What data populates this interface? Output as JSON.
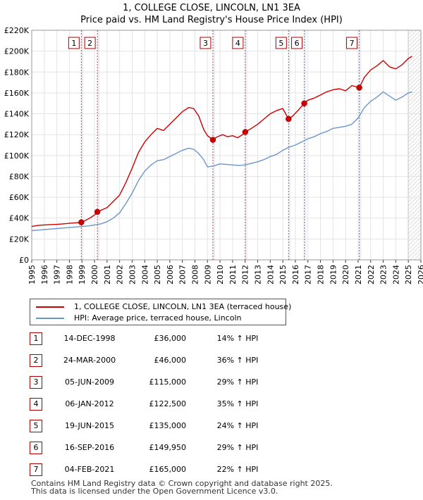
{
  "title": "1, COLLEGE CLOSE, LINCOLN, LN1 3EA",
  "subtitle": "Price paid vs. HM Land Registry's House Price Index (HPI)",
  "colors": {
    "property": "#cc0000",
    "hpi": "#6a96cc",
    "marker_line": "#cc0000",
    "sale_band": "#dbe6f5",
    "grid": "#e3e3e3"
  },
  "legend": {
    "property_label": "1, COLLEGE CLOSE, LINCOLN, LN1 3EA (terraced house)",
    "hpi_label": "HPI: Average price, terraced house, Lincoln"
  },
  "transactions": [
    {
      "num": "1",
      "date": "14-DEC-1998",
      "price": "£36,000",
      "hpi": "14% ↑ HPI"
    },
    {
      "num": "2",
      "date": "24-MAR-2000",
      "price": "£46,000",
      "hpi": "36% ↑ HPI"
    },
    {
      "num": "3",
      "date": "05-JUN-2009",
      "price": "£115,000",
      "hpi": "29% ↑ HPI"
    },
    {
      "num": "4",
      "date": "06-JAN-2012",
      "price": "£122,500",
      "hpi": "35% ↑ HPI"
    },
    {
      "num": "5",
      "date": "19-JUN-2015",
      "price": "£135,000",
      "hpi": "24% ↑ HPI"
    },
    {
      "num": "6",
      "date": "16-SEP-2016",
      "price": "£149,950",
      "hpi": "29% ↑ HPI"
    },
    {
      "num": "7",
      "date": "04-FEB-2021",
      "price": "£165,000",
      "hpi": "22% ↑ HPI"
    }
  ],
  "footer": {
    "line1": "Contains HM Land Registry data © Crown copyright and database right 2025.",
    "line2": "This data is licensed under the Open Government Licence v3.0."
  },
  "chart_data": {
    "type": "line",
    "title": "1, COLLEGE CLOSE, LINCOLN, LN1 3EA",
    "subtitle": "Price paid vs. HM Land Registry's House Price Index (HPI)",
    "xlabel": "",
    "ylabel": "",
    "xlim": [
      1995,
      2026
    ],
    "ylim": [
      0,
      220000
    ],
    "y_ticks": [
      0,
      20000,
      40000,
      60000,
      80000,
      100000,
      120000,
      140000,
      160000,
      180000,
      200000,
      220000
    ],
    "y_tick_labels": [
      "£0",
      "£20K",
      "£40K",
      "£60K",
      "£80K",
      "£100K",
      "£120K",
      "£140K",
      "£160K",
      "£180K",
      "£200K",
      "£220K"
    ],
    "x_ticks": [
      1995,
      1996,
      1997,
      1998,
      1999,
      2000,
      2001,
      2002,
      2003,
      2004,
      2005,
      2006,
      2007,
      2008,
      2009,
      2010,
      2011,
      2012,
      2013,
      2014,
      2015,
      2016,
      2017,
      2018,
      2019,
      2020,
      2021,
      2022,
      2023,
      2024,
      2025,
      2026
    ],
    "x_tick_labels": [
      "1995",
      "1996",
      "1997",
      "1998",
      "1999",
      "2000",
      "2001",
      "2002",
      "2003",
      "2004",
      "2005",
      "2006",
      "2007",
      "2008",
      "2009",
      "2010",
      "2011",
      "2012",
      "2013",
      "2014",
      "2015",
      "2016",
      "2017",
      "2018",
      "2019",
      "2020",
      "2021",
      "2022",
      "2023",
      "2024",
      "2025",
      "2026"
    ],
    "grid": true,
    "legend_position": "below",
    "series": [
      {
        "name": "1, COLLEGE CLOSE, LINCOLN, LN1 3EA (terraced house)",
        "color": "#cc0000",
        "x": [
          1995.0,
          1995.5,
          1996.0,
          1996.5,
          1997.0,
          1997.5,
          1998.0,
          1998.5,
          1998.95,
          1999.3,
          1999.7,
          2000.1,
          2000.23,
          2000.6,
          2001.0,
          2001.5,
          2002.0,
          2002.5,
          2003.0,
          2003.5,
          2004.0,
          2004.5,
          2005.0,
          2005.5,
          2006.0,
          2006.5,
          2007.0,
          2007.5,
          2007.9,
          2008.3,
          2008.7,
          2009.0,
          2009.43,
          2009.8,
          2010.2,
          2010.6,
          2011.0,
          2011.4,
          2011.8,
          2012.01,
          2012.5,
          2013.0,
          2013.5,
          2014.0,
          2014.5,
          2015.0,
          2015.46,
          2015.8,
          2016.2,
          2016.71,
          2017.0,
          2017.5,
          2018.0,
          2018.5,
          2019.0,
          2019.5,
          2020.0,
          2020.5,
          2021.09,
          2021.5,
          2022.0,
          2022.5,
          2023.0,
          2023.5,
          2024.0,
          2024.5,
          2025.0,
          2025.3
        ],
        "y": [
          32000,
          33000,
          33500,
          33800,
          34000,
          34500,
          35000,
          35500,
          36000,
          38000,
          40500,
          44000,
          46000,
          48000,
          50000,
          56000,
          62000,
          74000,
          88000,
          103000,
          113000,
          120000,
          126000,
          124000,
          130000,
          136000,
          142000,
          146000,
          145000,
          138000,
          125000,
          119000,
          115000,
          118000,
          120000,
          118000,
          119000,
          117000,
          120000,
          122500,
          126000,
          130000,
          135000,
          140000,
          143000,
          145000,
          135000,
          138000,
          143000,
          149950,
          153000,
          155000,
          158000,
          161000,
          163000,
          164000,
          162000,
          167000,
          165000,
          175000,
          182000,
          186000,
          191000,
          185000,
          183000,
          187000,
          193000,
          195000
        ]
      },
      {
        "name": "HPI: Average price, terraced house, Lincoln",
        "color": "#6a96cc",
        "x": [
          1995.0,
          1995.5,
          1996.0,
          1996.5,
          1997.0,
          1997.5,
          1998.0,
          1998.5,
          1999.0,
          1999.5,
          2000.0,
          2000.5,
          2001.0,
          2001.5,
          2002.0,
          2002.5,
          2003.0,
          2003.5,
          2004.0,
          2004.5,
          2005.0,
          2005.5,
          2006.0,
          2006.5,
          2007.0,
          2007.5,
          2007.9,
          2008.3,
          2008.7,
          2009.0,
          2009.5,
          2010.0,
          2010.5,
          2011.0,
          2011.5,
          2012.0,
          2012.5,
          2013.0,
          2013.5,
          2014.0,
          2014.5,
          2015.0,
          2015.5,
          2016.0,
          2016.5,
          2017.0,
          2017.5,
          2018.0,
          2018.5,
          2019.0,
          2019.5,
          2020.0,
          2020.5,
          2021.0,
          2021.5,
          2022.0,
          2022.5,
          2023.0,
          2023.5,
          2024.0,
          2024.5,
          2025.0,
          2025.3
        ],
        "y": [
          28000,
          28500,
          29000,
          29500,
          30000,
          30500,
          31000,
          31500,
          32000,
          32500,
          33500,
          34500,
          36500,
          40000,
          45000,
          54000,
          64000,
          76000,
          85000,
          91000,
          95000,
          96000,
          99000,
          102000,
          105000,
          107000,
          106000,
          102000,
          96000,
          89000,
          90000,
          92000,
          91500,
          91000,
          90500,
          91000,
          92500,
          94000,
          96000,
          99000,
          101000,
          105000,
          108000,
          110000,
          113000,
          116000,
          118000,
          121000,
          123000,
          126000,
          127000,
          128000,
          130000,
          136000,
          146000,
          152000,
          156000,
          161000,
          157000,
          153000,
          156000,
          160000,
          161000
        ]
      }
    ],
    "sales": [
      {
        "num": "1",
        "x": 1998.95,
        "y": 36000
      },
      {
        "num": "2",
        "x": 2000.23,
        "y": 46000
      },
      {
        "num": "3",
        "x": 2009.43,
        "y": 115000
      },
      {
        "num": "4",
        "x": 2012.01,
        "y": 122500
      },
      {
        "num": "5",
        "x": 2015.46,
        "y": 135000
      },
      {
        "num": "6",
        "x": 2016.71,
        "y": 149950
      },
      {
        "num": "7",
        "x": 2021.09,
        "y": 165000
      }
    ]
  }
}
